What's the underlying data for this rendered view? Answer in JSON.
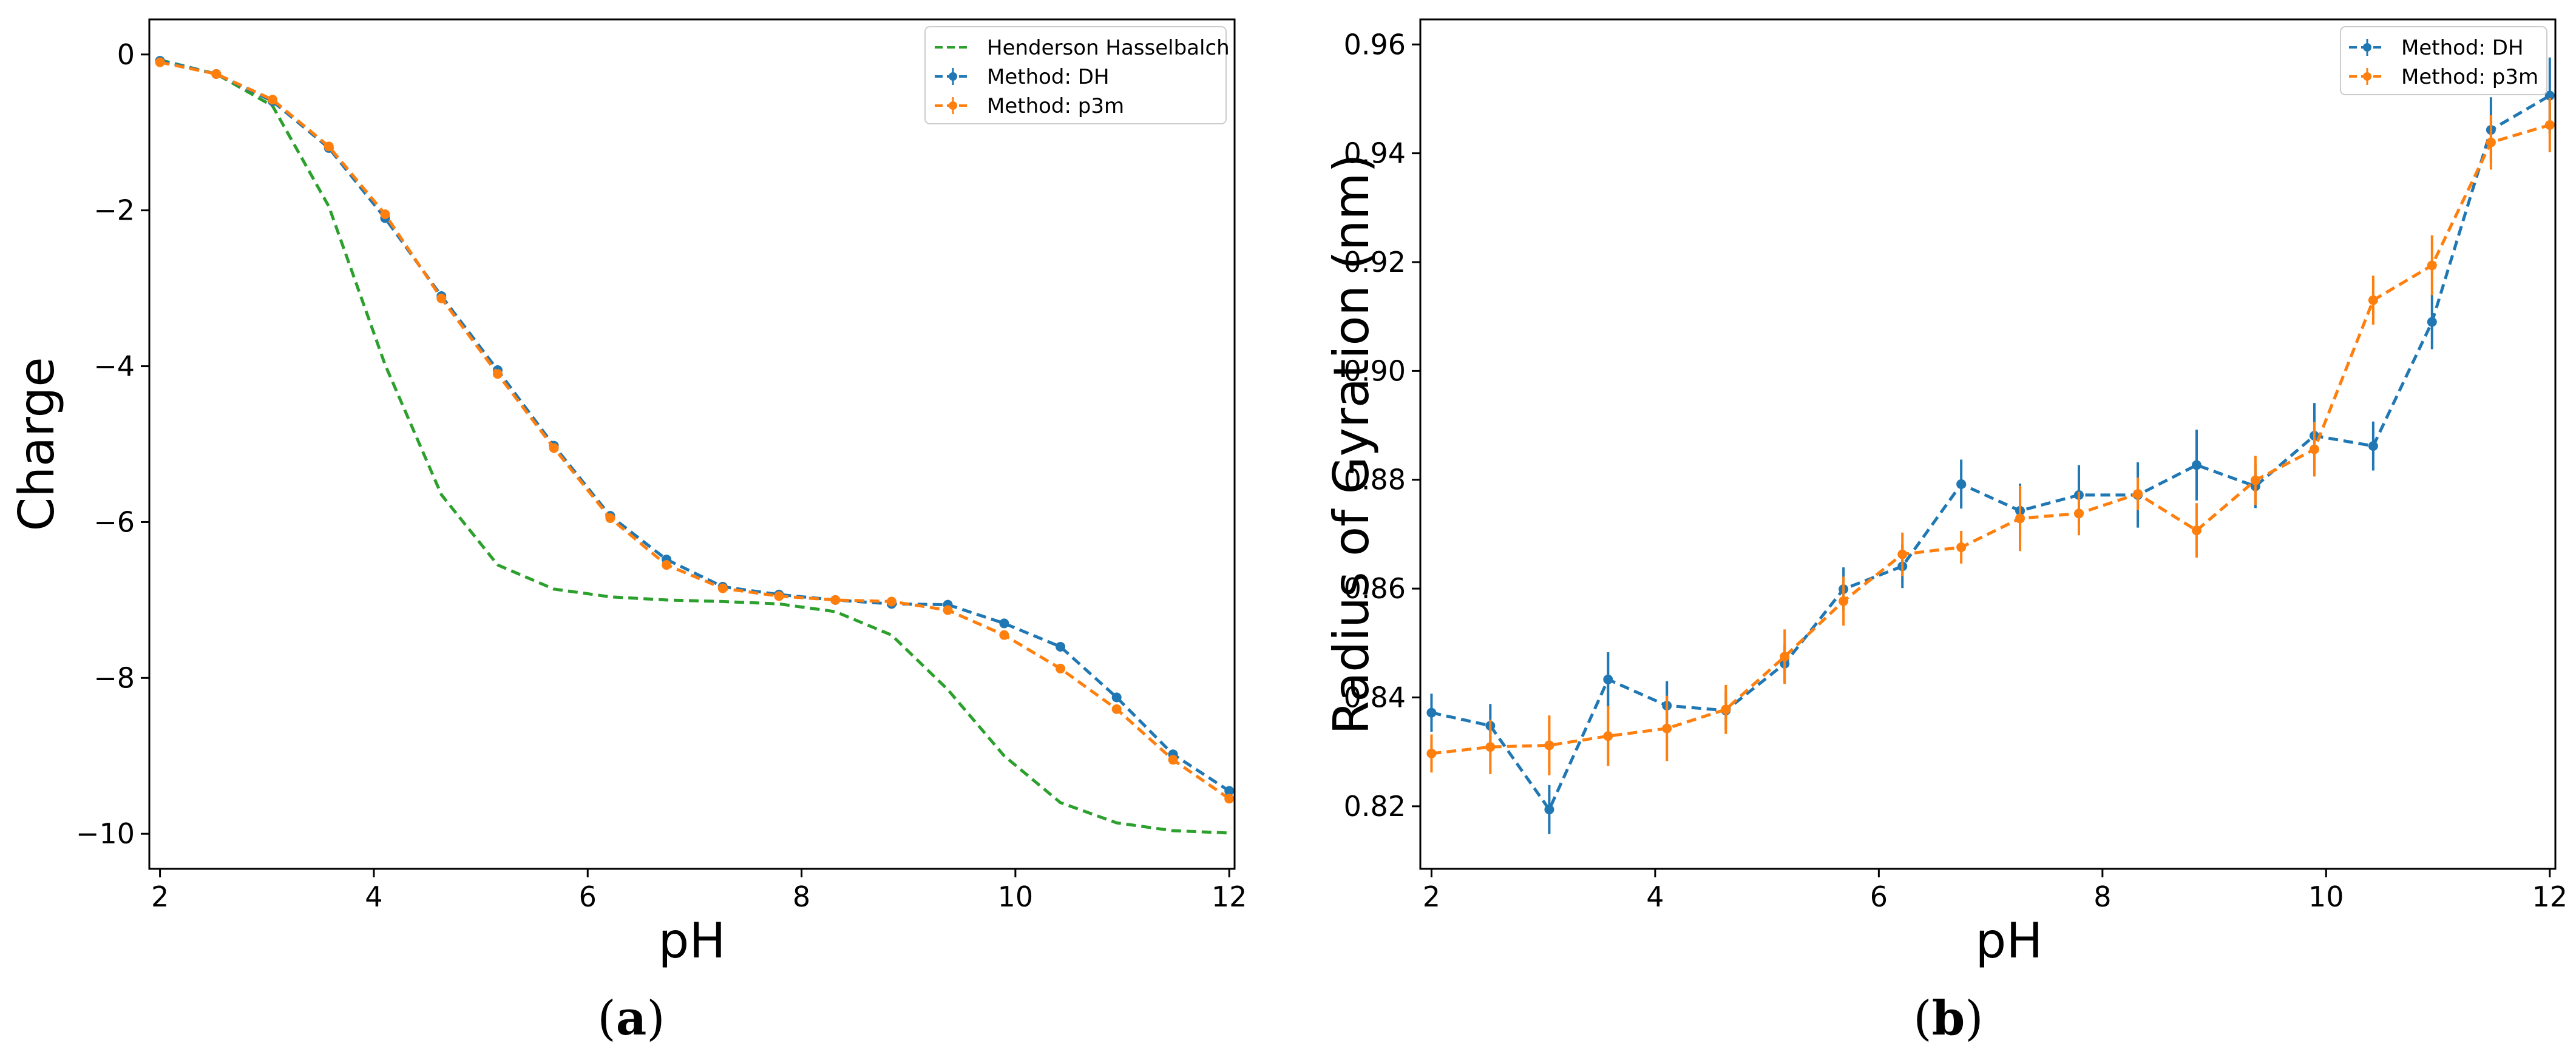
{
  "chart_data": [
    {
      "type": "line",
      "caption_letter": "a",
      "xlabel": "pH",
      "ylabel": "Charge",
      "xlim": [
        1.9,
        12.05
      ],
      "ylim": [
        -10.45,
        0.45
      ],
      "xticks": [
        2,
        4,
        6,
        8,
        10,
        12
      ],
      "xtick_labels": [
        "2",
        "4",
        "6",
        "8",
        "10",
        "12"
      ],
      "yticks": [
        0,
        -2,
        -4,
        -6,
        -8,
        -10
      ],
      "ytick_labels": [
        "0",
        "−2",
        "−4",
        "−6",
        "−8",
        "−10"
      ],
      "legend_position": "top-right",
      "series": [
        {
          "name": "Henderson Hasselbalch",
          "color": "#2ca02c",
          "markers": false,
          "x": [
            2.0,
            2.526,
            3.053,
            3.579,
            4.105,
            4.632,
            5.158,
            5.684,
            6.211,
            6.737,
            7.263,
            7.789,
            8.316,
            8.842,
            9.368,
            9.895,
            10.421,
            10.947,
            11.474,
            12.0
          ],
          "y": [
            -0.07,
            -0.25,
            -0.66,
            -1.95,
            -3.98,
            -5.65,
            -6.55,
            -6.86,
            -6.96,
            -7.0,
            -7.02,
            -7.05,
            -7.15,
            -7.45,
            -8.15,
            -9.0,
            -9.6,
            -9.86,
            -9.96,
            -9.99
          ]
        },
        {
          "name": "Method: DH",
          "color": "#1f77b4",
          "markers": true,
          "x": [
            2.0,
            2.526,
            3.053,
            3.579,
            4.105,
            4.632,
            5.158,
            5.684,
            6.211,
            6.737,
            7.263,
            7.789,
            8.316,
            8.842,
            9.368,
            9.895,
            10.421,
            10.947,
            11.474,
            12.0
          ],
          "y": [
            -0.08,
            -0.25,
            -0.6,
            -1.2,
            -2.1,
            -3.1,
            -4.05,
            -5.02,
            -5.92,
            -6.48,
            -6.83,
            -6.93,
            -7.0,
            -7.05,
            -7.06,
            -7.3,
            -7.6,
            -8.25,
            -8.98,
            -9.45
          ],
          "err": [
            0.03,
            0.03,
            0.03,
            0.04,
            0.05,
            0.05,
            0.05,
            0.05,
            0.05,
            0.05,
            0.04,
            0.04,
            0.04,
            0.04,
            0.04,
            0.05,
            0.05,
            0.05,
            0.05,
            0.05
          ]
        },
        {
          "name": "Method: p3m",
          "color": "#ff7f0e",
          "markers": true,
          "x": [
            2.0,
            2.526,
            3.053,
            3.579,
            4.105,
            4.632,
            5.158,
            5.684,
            6.211,
            6.737,
            7.263,
            7.789,
            8.316,
            8.842,
            9.368,
            9.895,
            10.421,
            10.947,
            11.474,
            12.0
          ],
          "y": [
            -0.1,
            -0.25,
            -0.58,
            -1.18,
            -2.05,
            -3.13,
            -4.1,
            -5.05,
            -5.95,
            -6.55,
            -6.85,
            -6.95,
            -7.0,
            -7.02,
            -7.13,
            -7.45,
            -7.88,
            -8.4,
            -9.05,
            -9.55
          ],
          "err": [
            0.03,
            0.03,
            0.03,
            0.04,
            0.05,
            0.05,
            0.05,
            0.05,
            0.05,
            0.05,
            0.04,
            0.04,
            0.04,
            0.04,
            0.04,
            0.05,
            0.05,
            0.05,
            0.05,
            0.05
          ]
        }
      ]
    },
    {
      "type": "line",
      "caption_letter": "b",
      "xlabel": "pH",
      "ylabel": "Radius of Gyration (nm)",
      "xlim": [
        1.9,
        12.05
      ],
      "ylim": [
        0.8085,
        0.9646
      ],
      "xticks": [
        2,
        4,
        6,
        8,
        10,
        12
      ],
      "xtick_labels": [
        "2",
        "4",
        "6",
        "8",
        "10",
        "12"
      ],
      "yticks": [
        0.82,
        0.84,
        0.86,
        0.88,
        0.9,
        0.92,
        0.94,
        0.96
      ],
      "ytick_labels": [
        "0.82",
        "0.84",
        "0.86",
        "0.88",
        "0.90",
        "0.92",
        "0.94",
        "0.96"
      ],
      "legend_position": "top-right",
      "series": [
        {
          "name": "Method: DH",
          "color": "#1f77b4",
          "markers": true,
          "x": [
            2.0,
            2.526,
            3.053,
            3.579,
            4.105,
            4.632,
            5.158,
            5.684,
            6.211,
            6.737,
            7.263,
            7.789,
            8.316,
            8.842,
            9.368,
            9.895,
            10.421,
            10.947,
            11.474,
            12.0
          ],
          "y": [
            0.8372,
            0.8348,
            0.8194,
            0.8433,
            0.8385,
            0.8376,
            0.8462,
            0.8599,
            0.8641,
            0.8792,
            0.8743,
            0.8772,
            0.8772,
            0.8827,
            0.8788,
            0.8881,
            0.8862,
            0.909,
            0.9443,
            0.9506
          ],
          "err": [
            0.0035,
            0.004,
            0.0045,
            0.005,
            0.0045,
            0.0035,
            0.0035,
            0.004,
            0.004,
            0.0045,
            0.005,
            0.0055,
            0.006,
            0.0065,
            0.004,
            0.006,
            0.0045,
            0.005,
            0.006,
            0.007
          ]
        },
        {
          "name": "Method: p3m",
          "color": "#ff7f0e",
          "markers": true,
          "x": [
            2.0,
            2.526,
            3.053,
            3.579,
            4.105,
            4.632,
            5.158,
            5.684,
            6.211,
            6.737,
            7.263,
            7.789,
            8.316,
            8.842,
            9.368,
            9.895,
            10.421,
            10.947,
            11.474,
            12.0
          ],
          "y": [
            0.8297,
            0.8309,
            0.8312,
            0.8329,
            0.8343,
            0.8378,
            0.8475,
            0.8577,
            0.8663,
            0.8676,
            0.8729,
            0.8738,
            0.8774,
            0.8707,
            0.8799,
            0.8856,
            0.913,
            0.9194,
            0.942,
            0.9452
          ],
          "err": [
            0.0035,
            0.005,
            0.0055,
            0.0055,
            0.006,
            0.0045,
            0.005,
            0.0045,
            0.004,
            0.003,
            0.006,
            0.004,
            0.003,
            0.005,
            0.0045,
            0.005,
            0.0045,
            0.0055,
            0.005,
            0.005
          ]
        }
      ]
    }
  ]
}
